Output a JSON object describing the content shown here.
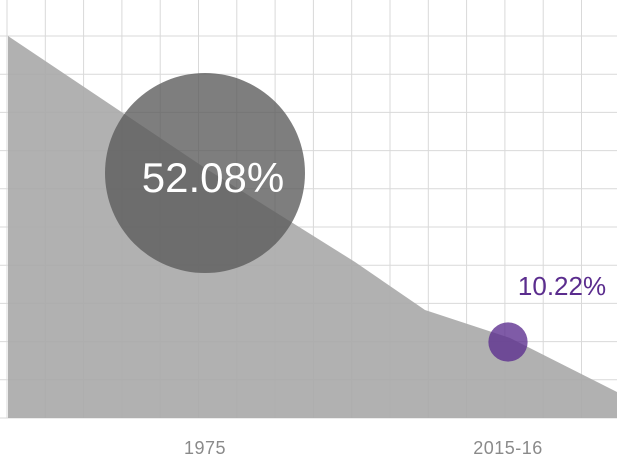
{
  "chart_data": {
    "type": "bubble",
    "categories": [
      "1975",
      "2015-16"
    ],
    "values": [
      52.08,
      10.22
    ],
    "value_labels": [
      "52.08%",
      "10.22%"
    ],
    "colors": [
      "#5a5a5a",
      "#5b2d8e"
    ],
    "grid": true
  }
}
